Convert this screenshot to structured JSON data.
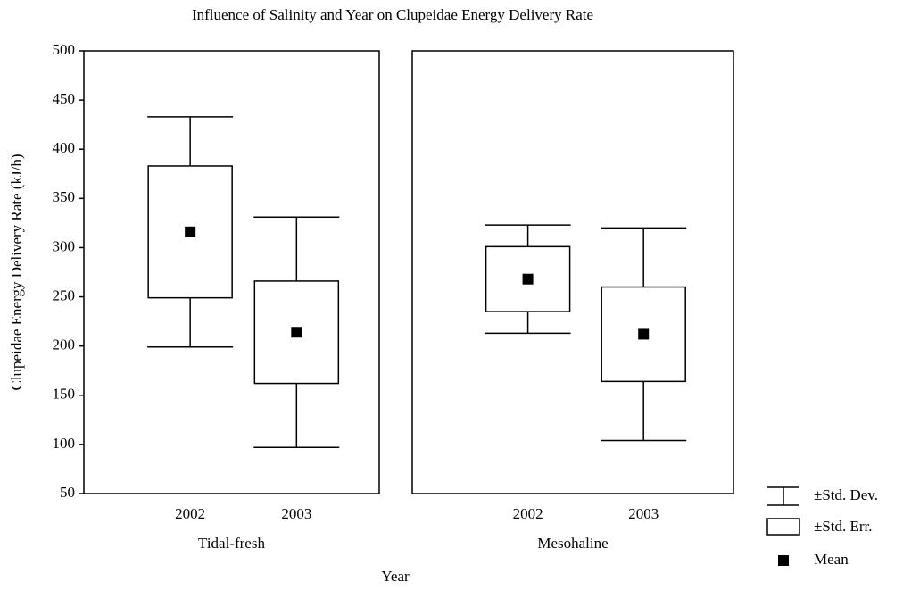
{
  "chart_data": {
    "type": "box",
    "title": "Influence of Salinity and Year on Clupeidae Energy Delivery Rate",
    "xlabel": "Year",
    "ylabel": "Clupeidae Energy Delivery Rate (kJ/h)",
    "ylim": [
      50,
      500
    ],
    "yticks": [
      50,
      100,
      150,
      200,
      250,
      300,
      350,
      400,
      450,
      500
    ],
    "legend": [
      "±Std. Dev.",
      "±Std. Err.",
      "Mean"
    ],
    "panels": [
      {
        "name": "Tidal-fresh",
        "categories": [
          "2002",
          "2003"
        ],
        "mean": [
          316,
          214
        ],
        "se": [
          67,
          52
        ],
        "sd": [
          117,
          117
        ]
      },
      {
        "name": "Mesohaline",
        "categories": [
          "2002",
          "2003"
        ],
        "mean": [
          268,
          212
        ],
        "se": [
          33,
          48
        ],
        "sd": [
          55,
          108
        ]
      }
    ]
  }
}
